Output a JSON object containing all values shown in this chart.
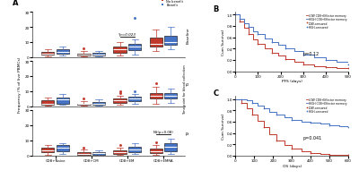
{
  "panel_A": {
    "title": "A",
    "ylabel": "Frequency (% of live PBMCs)",
    "categories": [
      "CD8+Naive",
      "CD8+CM",
      "CD8+EM",
      "CD8+EMRA"
    ],
    "timepoints": [
      "Baseline",
      "T1",
      "T2"
    ],
    "timepoint_label": "Time-point for blood collection",
    "no_benefit_color": "#c0392b",
    "benefit_color": "#4472c4",
    "annotation_baseline": "*p=0.023",
    "annotation_t2": "NS(p=0.08)",
    "boxplot_data": {
      "Baseline": {
        "CD8+Naive": {
          "no_benefit": {
            "median": 2.5,
            "q1": 1.5,
            "q3": 3.5,
            "whislo": 0.5,
            "whishi": 5.0,
            "fliers": []
          },
          "benefit": {
            "median": 3.5,
            "q1": 2.5,
            "q3": 5.5,
            "whislo": 1.0,
            "whishi": 7.0,
            "fliers": []
          }
        },
        "CD8+CM": {
          "no_benefit": {
            "median": 2.0,
            "q1": 1.0,
            "q3": 2.5,
            "whislo": 0.5,
            "whishi": 4.0,
            "fliers": [
              6.0
            ]
          },
          "benefit": {
            "median": 2.0,
            "q1": 1.0,
            "q3": 3.0,
            "whislo": 0.5,
            "whishi": 4.0,
            "fliers": []
          }
        },
        "CD8+EM": {
          "no_benefit": {
            "median": 5.0,
            "q1": 3.0,
            "q3": 7.0,
            "whislo": 1.0,
            "whishi": 10.0,
            "fliers": []
          },
          "benefit": {
            "median": 7.0,
            "q1": 4.5,
            "q3": 9.0,
            "whislo": 2.0,
            "whishi": 12.0,
            "fliers": [
              26.0
            ]
          }
        },
        "CD8+EMRA": {
          "no_benefit": {
            "median": 9.0,
            "q1": 7.0,
            "q3": 13.0,
            "whislo": 4.0,
            "whishi": 18.0,
            "fliers": []
          },
          "benefit": {
            "median": 10.0,
            "q1": 8.0,
            "q3": 14.0,
            "whislo": 5.0,
            "whishi": 20.0,
            "fliers": []
          }
        }
      },
      "T1": {
        "CD8+Naive": {
          "no_benefit": {
            "median": 2.0,
            "q1": 1.0,
            "q3": 4.0,
            "whislo": 0.5,
            "whishi": 6.0,
            "fliers": []
          },
          "benefit": {
            "median": 4.5,
            "q1": 2.0,
            "q3": 6.0,
            "whislo": 1.0,
            "whishi": 8.0,
            "fliers": []
          }
        },
        "CD8+CM": {
          "no_benefit": {
            "median": 1.5,
            "q1": 1.0,
            "q3": 2.0,
            "whislo": 0.5,
            "whishi": 3.5,
            "fliers": [
              5.5
            ]
          },
          "benefit": {
            "median": 2.0,
            "q1": 1.0,
            "q3": 3.0,
            "whislo": 0.5,
            "whishi": 4.5,
            "fliers": []
          }
        },
        "CD8+EM": {
          "no_benefit": {
            "median": 4.0,
            "q1": 2.5,
            "q3": 5.5,
            "whislo": 1.0,
            "whishi": 7.0,
            "fliers": [
              9.0,
              10.0
            ]
          },
          "benefit": {
            "median": 5.0,
            "q1": 3.5,
            "q3": 6.5,
            "whislo": 2.0,
            "whishi": 8.0,
            "fliers": [
              10.0
            ]
          }
        },
        "CD8+EMRA": {
          "no_benefit": {
            "median": 7.0,
            "q1": 5.0,
            "q3": 9.0,
            "whislo": 2.0,
            "whishi": 13.0,
            "fliers": [
              15.0
            ]
          },
          "benefit": {
            "median": 7.0,
            "q1": 5.0,
            "q3": 8.5,
            "whislo": 2.5,
            "whishi": 12.0,
            "fliers": []
          }
        }
      },
      "T2": {
        "CD8+Naive": {
          "no_benefit": {
            "median": 3.5,
            "q1": 2.0,
            "q3": 5.0,
            "whislo": 0.5,
            "whishi": 7.0,
            "fliers": []
          },
          "benefit": {
            "median": 5.0,
            "q1": 3.0,
            "q3": 7.0,
            "whislo": 1.0,
            "whishi": 8.0,
            "fliers": []
          }
        },
        "CD8+CM": {
          "no_benefit": {
            "median": 1.0,
            "q1": 0.5,
            "q3": 2.0,
            "whislo": 0.2,
            "whishi": 4.0,
            "fliers": [
              5.5
            ]
          },
          "benefit": {
            "median": 1.5,
            "q1": 0.5,
            "q3": 2.5,
            "whislo": 0.2,
            "whishi": 3.5,
            "fliers": []
          }
        },
        "CD8+EM": {
          "no_benefit": {
            "median": 2.0,
            "q1": 1.0,
            "q3": 3.5,
            "whislo": 0.5,
            "whishi": 5.0,
            "fliers": [
              7.0
            ]
          },
          "benefit": {
            "median": 4.0,
            "q1": 2.0,
            "q3": 6.0,
            "whislo": 1.0,
            "whishi": 8.0,
            "fliers": []
          }
        },
        "CD8+EMRA": {
          "no_benefit": {
            "median": 3.0,
            "q1": 1.5,
            "q3": 4.5,
            "whislo": 0.5,
            "whishi": 7.0,
            "fliers": [
              9.0
            ]
          },
          "benefit": {
            "median": 6.0,
            "q1": 3.0,
            "q3": 8.0,
            "whislo": 1.0,
            "whishi": 11.0,
            "fliers": []
          }
        }
      }
    }
  },
  "panel_B": {
    "title": "B",
    "xlabel": "PFS (days)",
    "ylabel": "Cum Survival",
    "pvalue": "p=0.12",
    "low_color": "#c0392b",
    "high_color": "#4472c4",
    "legend": [
      "LOW CD8+Effector memory",
      "HIGH CD8+Effector memory",
      "LOW-censored",
      "HIGH-censored"
    ],
    "low_x": [
      0,
      20,
      40,
      60,
      80,
      100,
      130,
      160,
      190,
      220,
      260,
      300,
      350,
      400,
      450,
      500
    ],
    "low_y": [
      1.0,
      0.88,
      0.76,
      0.65,
      0.56,
      0.48,
      0.4,
      0.33,
      0.27,
      0.22,
      0.16,
      0.12,
      0.09,
      0.07,
      0.06,
      0.05
    ],
    "high_x": [
      0,
      20,
      40,
      60,
      80,
      100,
      130,
      160,
      190,
      220,
      260,
      300,
      350,
      400,
      450,
      500
    ],
    "high_y": [
      1.0,
      0.93,
      0.85,
      0.78,
      0.71,
      0.65,
      0.58,
      0.52,
      0.46,
      0.41,
      0.35,
      0.3,
      0.25,
      0.2,
      0.16,
      0.12
    ],
    "xmax": 500,
    "xticks": [
      0,
      100,
      200,
      300,
      400,
      500
    ]
  },
  "panel_C": {
    "title": "C",
    "xlabel": "OS (days)",
    "ylabel": "Cum Survival",
    "pvalue": "p=0.041",
    "low_color": "#c0392b",
    "high_color": "#4472c4",
    "legend": [
      "LOW CD8+Effector memory",
      "HIGH CD8+Effector memory",
      "LOW-censored",
      "HIGH-censored"
    ],
    "low_x": [
      0,
      30,
      60,
      90,
      120,
      150,
      180,
      220,
      260,
      300,
      350,
      400,
      450,
      500,
      550,
      600
    ],
    "low_y": [
      1.0,
      0.93,
      0.83,
      0.72,
      0.62,
      0.5,
      0.38,
      0.27,
      0.18,
      0.12,
      0.08,
      0.05,
      0.03,
      0.02,
      0.01,
      0.01
    ],
    "high_x": [
      0,
      30,
      60,
      90,
      120,
      150,
      180,
      220,
      260,
      300,
      350,
      400,
      450,
      500,
      550,
      600
    ],
    "high_y": [
      1.0,
      1.0,
      0.97,
      0.93,
      0.88,
      0.83,
      0.78,
      0.73,
      0.68,
      0.63,
      0.6,
      0.58,
      0.56,
      0.54,
      0.52,
      0.5
    ],
    "xmax": 600,
    "xticks": [
      0,
      100,
      200,
      300,
      400,
      500,
      600
    ]
  },
  "figure_bg": "#ffffff"
}
